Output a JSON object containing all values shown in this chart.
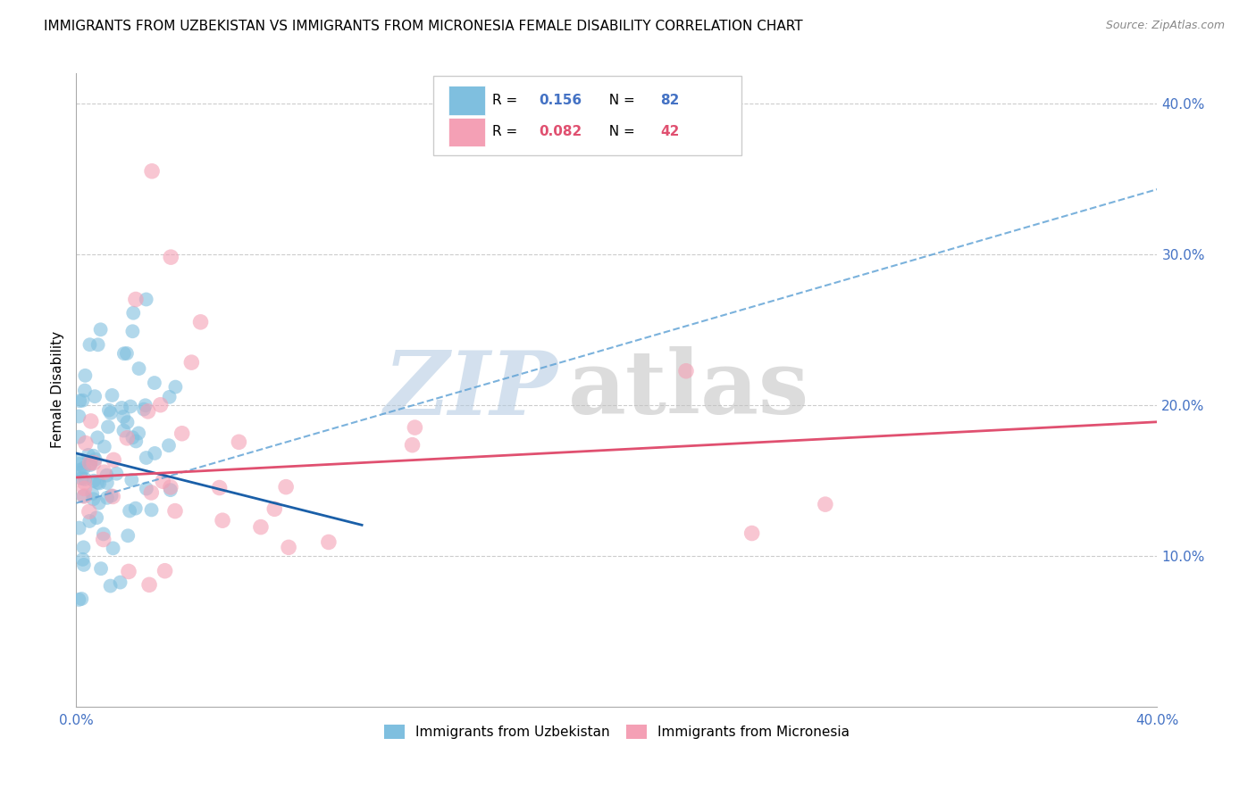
{
  "title": "IMMIGRANTS FROM UZBEKISTAN VS IMMIGRANTS FROM MICRONESIA FEMALE DISABILITY CORRELATION CHART",
  "source": "Source: ZipAtlas.com",
  "ylabel": "Female Disability",
  "xlim": [
    0.0,
    0.4
  ],
  "ylim": [
    0.0,
    0.42
  ],
  "color_blue": "#7fbfdf",
  "color_pink": "#f4a0b5",
  "trendline_blue_solid_color": "#1a5fa8",
  "trendline_blue_dashed_color": "#5a9fd4",
  "trendline_pink_color": "#e05070",
  "watermark_zip_color": "#b0c8e0",
  "watermark_atlas_color": "#c0c0c0"
}
